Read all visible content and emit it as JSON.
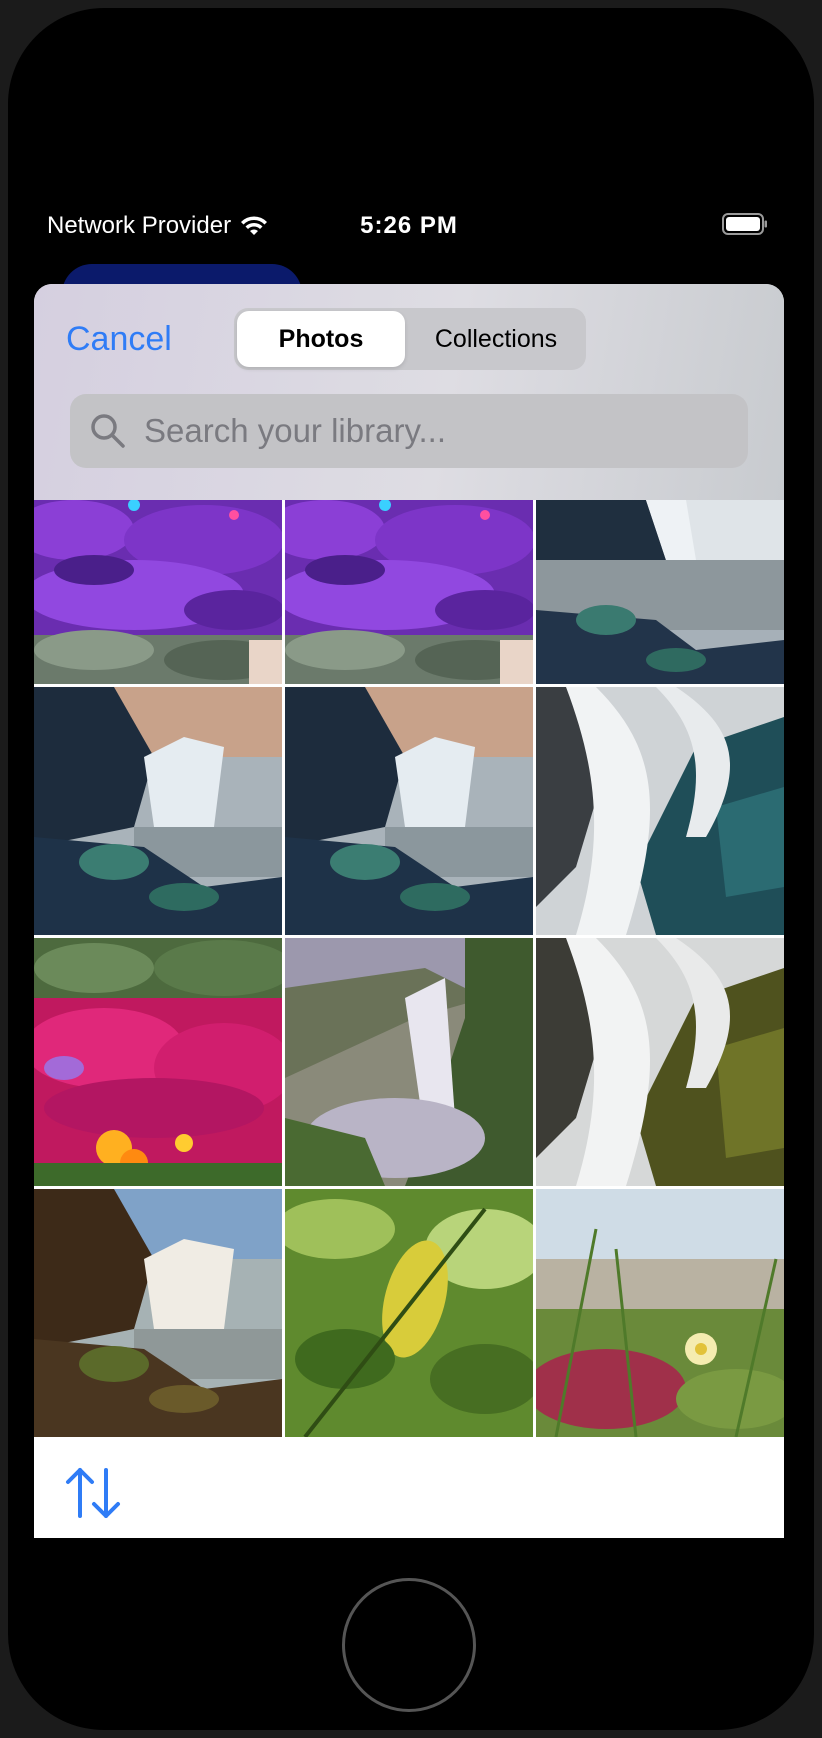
{
  "status_bar": {
    "carrier": "Network Provider",
    "time": "5:26 PM"
  },
  "picker": {
    "cancel_label": "Cancel",
    "segments": {
      "photos": "Photos",
      "collections": "Collections"
    },
    "selected_segment": "Photos",
    "search": {
      "placeholder": "Search your library...",
      "value": ""
    },
    "accent_color": "#2f7cf6"
  },
  "photos": [
    {
      "subject": "purple flowers"
    },
    {
      "subject": "purple flowers"
    },
    {
      "subject": "waterfall, blue rocks"
    },
    {
      "subject": "waterfall, blue rocks"
    },
    {
      "subject": "waterfall, blue rocks"
    },
    {
      "subject": "waterfall closeup, teal rocks"
    },
    {
      "subject": "pink flowers"
    },
    {
      "subject": "waterfall canyon"
    },
    {
      "subject": "waterfall closeup, mossy rocks"
    },
    {
      "subject": "waterfall, brown rocks"
    },
    {
      "subject": "green leaves"
    },
    {
      "subject": "beach grass with yellow flower"
    }
  ],
  "toolbar": {
    "sort_icon": "sort-arrows-icon"
  }
}
